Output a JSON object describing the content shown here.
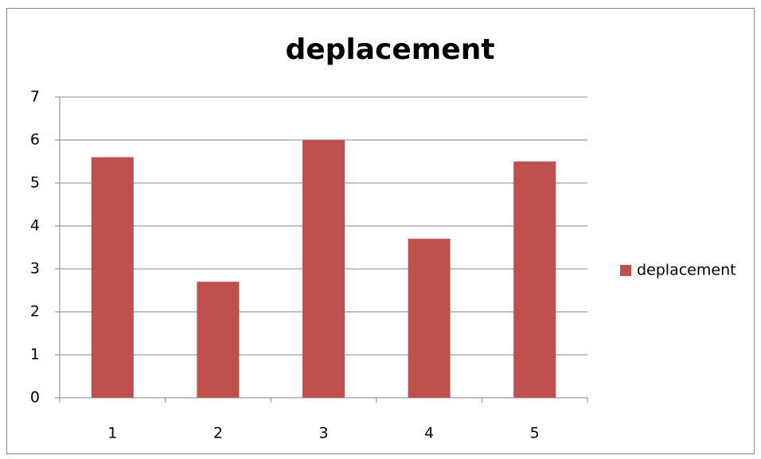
{
  "chart_data": {
    "type": "bar",
    "title": "deplacement",
    "categories": [
      "1",
      "2",
      "3",
      "4",
      "5"
    ],
    "series": [
      {
        "name": "deplacement",
        "color": "#c0504d",
        "values": [
          5.6,
          2.7,
          6.0,
          3.7,
          5.5
        ]
      }
    ],
    "ylim": [
      0,
      7
    ],
    "yticks": [
      0,
      1,
      2,
      3,
      4,
      5,
      6,
      7
    ],
    "grid": true,
    "legend": "right"
  }
}
